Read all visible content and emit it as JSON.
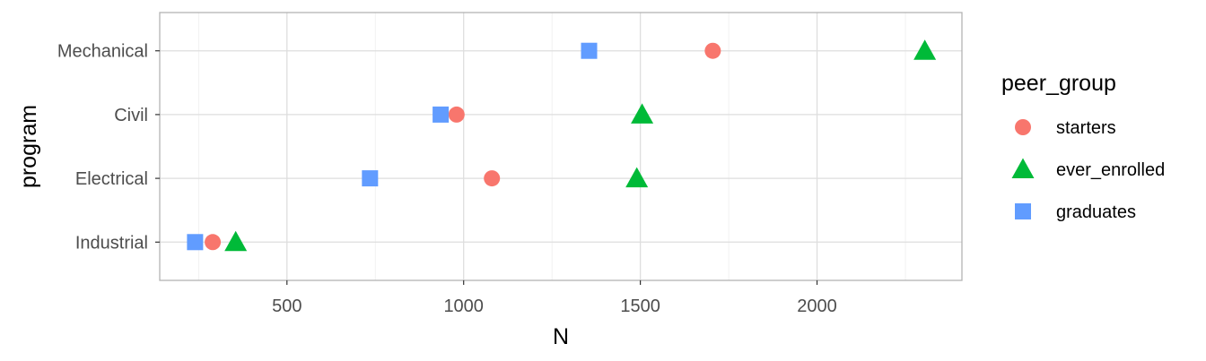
{
  "chart_data": {
    "type": "scatter",
    "xlabel": "N",
    "ylabel": "program",
    "xlim": [
      140,
      2410
    ],
    "x_ticks": [
      500,
      1000,
      1500,
      2000
    ],
    "x_tick_labels": [
      "500",
      "1000",
      "1500",
      "2000"
    ],
    "categories": [
      "Industrial",
      "Electrical",
      "Civil",
      "Mechanical"
    ],
    "grid": true,
    "legend": {
      "title": "peer_group",
      "placement": "right"
    },
    "series": [
      {
        "name": "starters",
        "shape": "circle",
        "color": "#F8766D",
        "points": [
          {
            "category": "Mechanical",
            "x": 1705
          },
          {
            "category": "Civil",
            "x": 980
          },
          {
            "category": "Electrical",
            "x": 1080
          },
          {
            "category": "Industrial",
            "x": 290
          }
        ]
      },
      {
        "name": "ever_enrolled",
        "shape": "triangle",
        "color": "#00BA38",
        "points": [
          {
            "category": "Mechanical",
            "x": 2305
          },
          {
            "category": "Civil",
            "x": 1505
          },
          {
            "category": "Electrical",
            "x": 1490
          },
          {
            "category": "Industrial",
            "x": 355
          }
        ]
      },
      {
        "name": "graduates",
        "shape": "square",
        "color": "#619CFF",
        "points": [
          {
            "category": "Mechanical",
            "x": 1355
          },
          {
            "category": "Civil",
            "x": 935
          },
          {
            "category": "Electrical",
            "x": 735
          },
          {
            "category": "Industrial",
            "x": 240
          }
        ]
      }
    ]
  }
}
